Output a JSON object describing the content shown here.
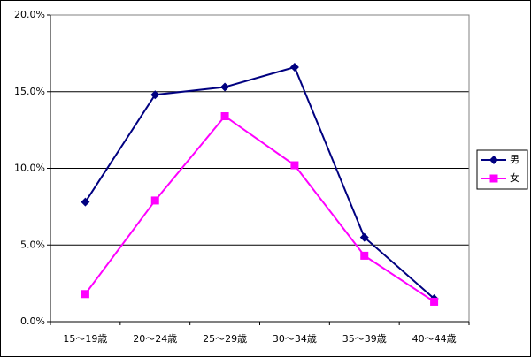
{
  "chart_data": {
    "type": "line",
    "categories": [
      "15～19歳",
      "20～24歳",
      "25～29歳",
      "30～34歳",
      "35～39歳",
      "40～44歳"
    ],
    "series": [
      {
        "name": "男",
        "color": "#000080",
        "marker": "diamond",
        "values": [
          7.8,
          14.8,
          15.3,
          16.6,
          5.5,
          1.5
        ]
      },
      {
        "name": "女",
        "color": "#ff00ff",
        "marker": "square",
        "values": [
          1.8,
          7.9,
          13.4,
          10.2,
          4.3,
          1.3
        ]
      }
    ],
    "ylim": [
      0,
      20
    ],
    "yticks": [
      {
        "value": 0,
        "label": "0.0%"
      },
      {
        "value": 5,
        "label": "5.0%"
      },
      {
        "value": 10,
        "label": "10.0%"
      },
      {
        "value": 15,
        "label": "15.0%"
      },
      {
        "value": 20,
        "label": "20.0%"
      }
    ],
    "grid": true,
    "legend": "right"
  }
}
